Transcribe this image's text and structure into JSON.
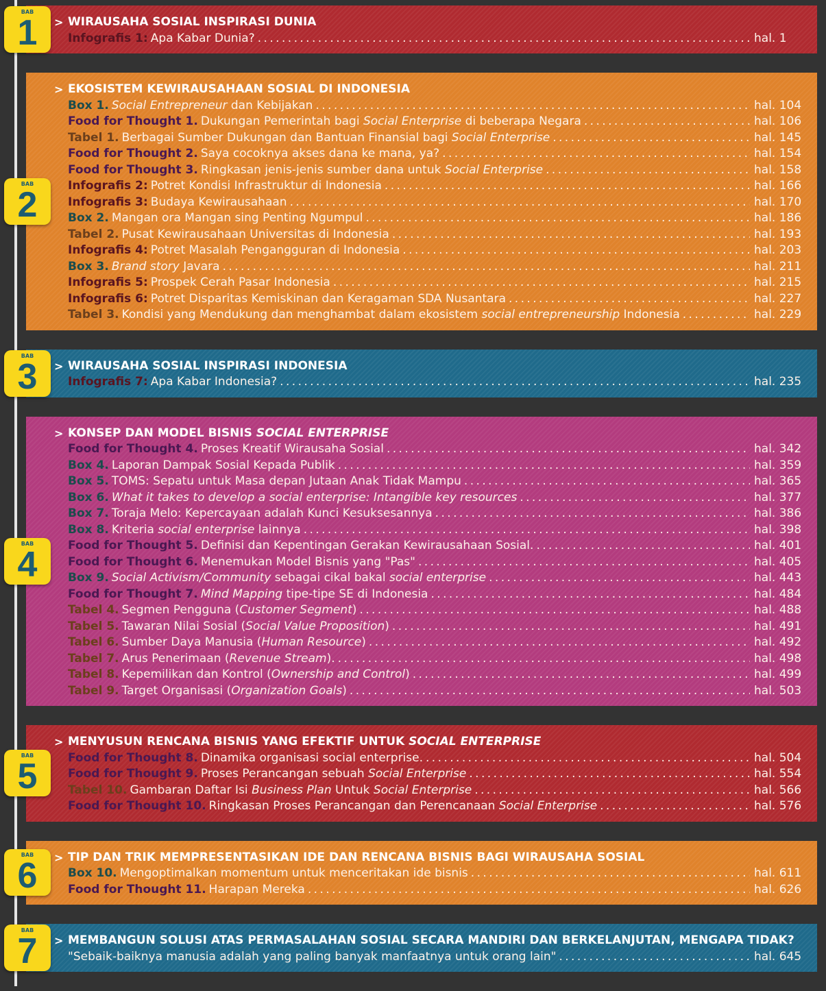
{
  "colors": {
    "red": "#b02a30",
    "orange": "#e0832b",
    "blue": "#1f6a8b",
    "magenta": "#b33b7e",
    "badge": "#f9d71c",
    "badge_text": "#1d5c72"
  },
  "badge_label": "BAB",
  "chapters": [
    {
      "number": "1",
      "color": "red",
      "title": [
        {
          "t": "WIRAUSAHA SOSIAL INSPIRASI DUNIA"
        }
      ],
      "entries": [
        {
          "label": "Infografis 1:",
          "type": "info",
          "parts": [
            {
              "t": "Apa Kabar Dunia?"
            }
          ],
          "page": "hal.  1"
        }
      ]
    },
    {
      "number": "2",
      "color": "orange",
      "title": [
        {
          "t": "EKOSISTEM KEWIRAUSAHAAN SOSIAL DI INDONESIA"
        }
      ],
      "entries": [
        {
          "label": "Box 1.",
          "type": "box",
          "parts": [
            {
              "t": "Social Entrepreneur",
              "i": true
            },
            {
              "t": " dan Kebijakan"
            }
          ],
          "page": "hal. 104"
        },
        {
          "label": "Food for Thought 1.",
          "type": "fft",
          "parts": [
            {
              "t": "Dukungan Pemerintah bagi "
            },
            {
              "t": "Social Enterprise",
              "i": true
            },
            {
              "t": " di beberapa Negara"
            }
          ],
          "page": "hal. 106"
        },
        {
          "label": "Tabel 1.",
          "type": "tabel",
          "parts": [
            {
              "t": "Berbagai Sumber Dukungan dan Bantuan Finansial bagi "
            },
            {
              "t": "Social Enterprise",
              "i": true
            }
          ],
          "page": "hal. 145"
        },
        {
          "label": "Food for Thought 2.",
          "type": "fft",
          "parts": [
            {
              "t": "Saya cocoknya akses dana ke mana, ya?"
            }
          ],
          "page": "hal. 154"
        },
        {
          "label": "Food for Thought 3.",
          "type": "fft",
          "parts": [
            {
              "t": "Ringkasan jenis-jenis sumber dana untuk "
            },
            {
              "t": "Social Enterprise",
              "i": true
            }
          ],
          "page": "hal. 158"
        },
        {
          "label": "Infografis 2:",
          "type": "info",
          "parts": [
            {
              "t": "Potret Kondisi Infrastruktur di Indonesia"
            }
          ],
          "page": "hal. 166"
        },
        {
          "label": "Infografis 3:",
          "type": "info",
          "parts": [
            {
              "t": "Budaya Kewirausahaan"
            }
          ],
          "page": "hal. 170"
        },
        {
          "label": "Box 2.",
          "type": "box",
          "parts": [
            {
              "t": "Mangan ora Mangan sing Penting Ngumpul"
            }
          ],
          "page": "hal. 186"
        },
        {
          "label": "Tabel 2.",
          "type": "tabel",
          "parts": [
            {
              "t": "Pusat Kewirausahaan Universitas di Indonesia"
            }
          ],
          "page": "hal. 193"
        },
        {
          "label": "Infografis 4:",
          "type": "info",
          "parts": [
            {
              "t": "Potret Masalah Pengangguran di Indonesia"
            }
          ],
          "page": "hal. 203"
        },
        {
          "label": "Box 3.",
          "type": "box",
          "parts": [
            {
              "t": "Brand story",
              "i": true
            },
            {
              "t": " Javara"
            }
          ],
          "page": "hal. 211"
        },
        {
          "label": "Infografis 5:",
          "type": "info",
          "parts": [
            {
              "t": "Prospek Cerah Pasar Indonesia"
            }
          ],
          "page": "hal. 215"
        },
        {
          "label": "Infografis 6:",
          "type": "info",
          "parts": [
            {
              "t": "Potret Disparitas Kemiskinan dan Keragaman SDA Nusantara"
            }
          ],
          "page": "hal. 227"
        },
        {
          "label": "Tabel 3.",
          "type": "tabel",
          "parts": [
            {
              "t": "Kondisi yang Mendukung dan menghambat dalam ekosistem "
            },
            {
              "t": "social entrepreneurship",
              "i": true
            },
            {
              "t": " Indonesia"
            }
          ],
          "page": "hal. 229"
        }
      ]
    },
    {
      "number": "3",
      "color": "blue",
      "title": [
        {
          "t": "WIRAUSAHA SOSIAL INSPIRASI INDONESIA"
        }
      ],
      "entries": [
        {
          "label": "Infografis 7:",
          "type": "info",
          "parts": [
            {
              "t": "Apa Kabar Indonesia?"
            }
          ],
          "page": "hal. 235"
        }
      ]
    },
    {
      "number": "4",
      "color": "magenta",
      "title": [
        {
          "t": "KONSEP DAN MODEL BISNIS "
        },
        {
          "t": "SOCIAL ENTERPRISE",
          "i": true
        }
      ],
      "entries": [
        {
          "label": "Food for Thought 4.",
          "type": "fft",
          "parts": [
            {
              "t": "Proses Kreatif Wirausaha Sosial"
            }
          ],
          "page": "hal. 342"
        },
        {
          "label": "Box 4.",
          "type": "box",
          "parts": [
            {
              "t": "Laporan Dampak Sosial Kepada Publik"
            }
          ],
          "page": "hal. 359"
        },
        {
          "label": "Box 5.",
          "type": "box",
          "parts": [
            {
              "t": "TOMS: Sepatu untuk Masa depan Jutaan Anak Tidak Mampu"
            }
          ],
          "page": "hal. 365"
        },
        {
          "label": "Box 6.",
          "type": "box",
          "parts": [
            {
              "t": "What it takes to develop a social enterprise: Intangible key resources",
              "i": true
            }
          ],
          "page": "hal. 377"
        },
        {
          "label": "Box 7.",
          "type": "box",
          "parts": [
            {
              "t": "Toraja Melo: Kepercayaan adalah Kunci Kesuksesannya"
            }
          ],
          "page": "hal. 386"
        },
        {
          "label": "Box 8.",
          "type": "box",
          "parts": [
            {
              "t": "Kriteria "
            },
            {
              "t": "social enterprise",
              "i": true
            },
            {
              "t": " lainnya"
            }
          ],
          "page": "hal. 398"
        },
        {
          "label": "Food for Thought 5.",
          "type": "fft",
          "parts": [
            {
              "t": "Definisi dan Kepentingan Gerakan Kewirausahaan Sosial."
            }
          ],
          "page": "hal. 401"
        },
        {
          "label": "Food for Thought 6.",
          "type": "fft",
          "parts": [
            {
              "t": "Menemukan Model Bisnis yang \"Pas\""
            }
          ],
          "page": "hal. 405"
        },
        {
          "label": "Box 9.",
          "type": "box",
          "parts": [
            {
              "t": "Social Activism/Community",
              "i": true
            },
            {
              "t": " sebagai  cikal bakal "
            },
            {
              "t": "social enterprise",
              "i": true
            }
          ],
          "page": "hal. 443"
        },
        {
          "label": "Food for Thought 7.",
          "type": "fft",
          "parts": [
            {
              "t": "Mind Mapping",
              "i": true
            },
            {
              "t": " tipe-tipe SE di Indonesia"
            }
          ],
          "page": "hal. 484"
        },
        {
          "label": "Tabel 4.",
          "type": "tabel",
          "parts": [
            {
              "t": "Segmen Pengguna ("
            },
            {
              "t": "Customer Segment",
              "i": true
            },
            {
              "t": ")"
            }
          ],
          "page": "hal. 488"
        },
        {
          "label": "Tabel 5.",
          "type": "tabel",
          "parts": [
            {
              "t": "Tawaran Nilai Sosial ("
            },
            {
              "t": "Social Value Proposition",
              "i": true
            },
            {
              "t": ")"
            }
          ],
          "page": "hal. 491"
        },
        {
          "label": "Tabel 6.",
          "type": "tabel",
          "parts": [
            {
              "t": "Sumber Daya Manusia ("
            },
            {
              "t": "Human Resource",
              "i": true
            },
            {
              "t": ")"
            }
          ],
          "page": "hal. 492"
        },
        {
          "label": "Tabel 7.",
          "type": "tabel",
          "parts": [
            {
              "t": "Arus Penerimaan ("
            },
            {
              "t": "Revenue Stream",
              "i": true
            },
            {
              "t": ")."
            }
          ],
          "page": "hal. 498"
        },
        {
          "label": "Tabel 8.",
          "type": "tabel",
          "parts": [
            {
              "t": "Kepemilikan dan Kontrol ("
            },
            {
              "t": "Ownership and Control",
              "i": true
            },
            {
              "t": ")"
            }
          ],
          "page": "hal. 499"
        },
        {
          "label": "Tabel 9.",
          "type": "tabel",
          "parts": [
            {
              "t": "Target Organisasi ("
            },
            {
              "t": "Organization Goals",
              "i": true
            },
            {
              "t": ")"
            }
          ],
          "page": "hal. 503"
        }
      ]
    },
    {
      "number": "5",
      "color": "red",
      "title": [
        {
          "t": "MENYUSUN RENCANA BISNIS YANG EFEKTIF UNTUK "
        },
        {
          "t": "SOCIAL ENTERPRISE",
          "i": true
        }
      ],
      "entries": [
        {
          "label": "Food for Thought 8.",
          "type": "fft",
          "parts": [
            {
              "t": "Dinamika organisasi social enterprise."
            }
          ],
          "page": "hal. 504"
        },
        {
          "label": "Food for Thought 9.",
          "type": "fft",
          "parts": [
            {
              "t": "Proses Perancangan sebuah "
            },
            {
              "t": "Social Enterprise",
              "i": true
            }
          ],
          "page": "hal. 554"
        },
        {
          "label": "Tabel 10.",
          "type": "tabel",
          "parts": [
            {
              "t": "Gambaran Daftar Isi "
            },
            {
              "t": "Business Plan",
              "i": true
            },
            {
              "t": " Untuk "
            },
            {
              "t": "Social Enterprise",
              "i": true
            }
          ],
          "page": "hal. 566"
        },
        {
          "label": "Food for Thought 10.",
          "type": "fft",
          "parts": [
            {
              "t": "Ringkasan Proses Perancangan dan Perencanaan "
            },
            {
              "t": "Social Enterprise",
              "i": true
            }
          ],
          "page": "hal. 576"
        }
      ]
    },
    {
      "number": "6",
      "color": "orange",
      "title": [
        {
          "t": "TIP DAN TRIK MEMPRESENTASIKAN IDE DAN RENCANA BISNIS BAGI WIRAUSAHA SOSIAL"
        }
      ],
      "entries": [
        {
          "label": "Box 10.",
          "type": "box",
          "parts": [
            {
              "t": "Mengoptimalkan momentum untuk menceritakan ide bisnis"
            }
          ],
          "page": "hal. 611"
        },
        {
          "label": "Food for Thought 11.",
          "type": "fft",
          "parts": [
            {
              "t": " Harapan Mereka"
            }
          ],
          "page": "hal. 626"
        }
      ]
    },
    {
      "number": "7",
      "color": "blue",
      "title": [
        {
          "t": "MEMBANGUN SOLUSI ATAS PERMASALAHAN SOSIAL SECARA MANDIRI DAN BERKELANJUTAN, MENGAPA TIDAK?"
        }
      ],
      "entries": [
        {
          "label": "",
          "type": "none",
          "parts": [
            {
              "t": "\"Sebaik-baiknya manusia adalah yang paling banyak manfaatnya untuk orang lain\""
            }
          ],
          "page": "hal. 645"
        }
      ]
    }
  ]
}
